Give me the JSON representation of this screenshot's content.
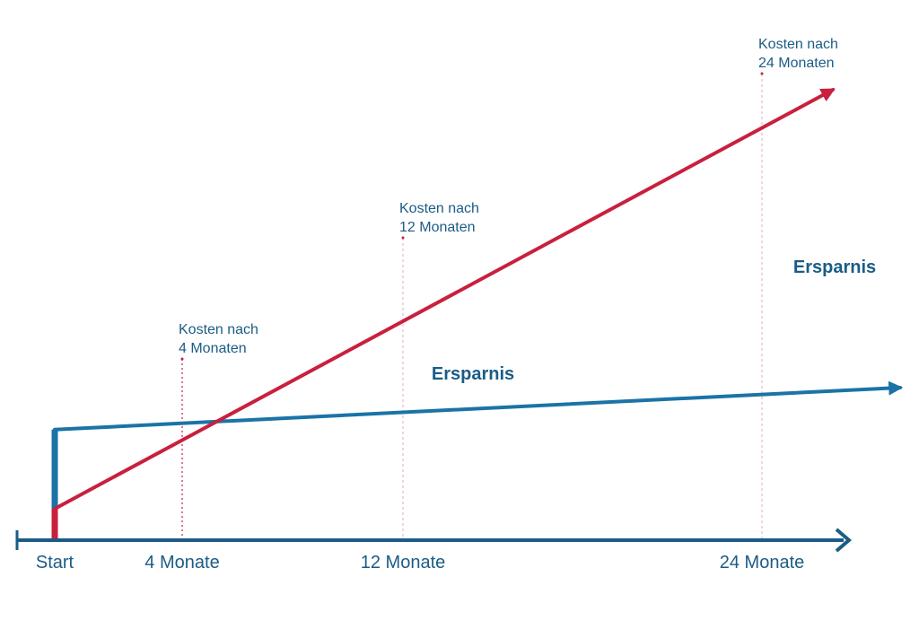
{
  "chart_data": {
    "type": "line",
    "title": "",
    "xlabel": "",
    "ylabel": "",
    "categories": [
      "Start",
      "4 Monate",
      "12 Monate",
      "24 Monate"
    ],
    "x_months": [
      0,
      4,
      12,
      24
    ],
    "series": [
      {
        "key": "red",
        "color": "#c8203d",
        "start": 0.25,
        "slope": 0.235
      },
      {
        "key": "blue",
        "color": "#1b73a6",
        "start": 0.88,
        "slope": 0.0285
      }
    ],
    "cost_markers": [
      {
        "month": 4,
        "label_line1": "Kosten nach",
        "label_line2": "4 Monaten"
      },
      {
        "month": 12,
        "label_line1": "Kosten nach",
        "label_line2": "12 Monaten"
      },
      {
        "month": 24,
        "label_line1": "Kosten nach",
        "label_line2": "24 Monaten"
      }
    ],
    "savings_labels": [
      {
        "text": "Ersparnis",
        "month": 12
      },
      {
        "text": "Ersparnis",
        "month": 24
      }
    ],
    "colors": {
      "axis": "#1b5c86",
      "red": "#c8203d",
      "blue": "#1b73a6",
      "marker": "#e9a8b4",
      "text": "#1b5c86"
    },
    "axis_arrow": true
  }
}
